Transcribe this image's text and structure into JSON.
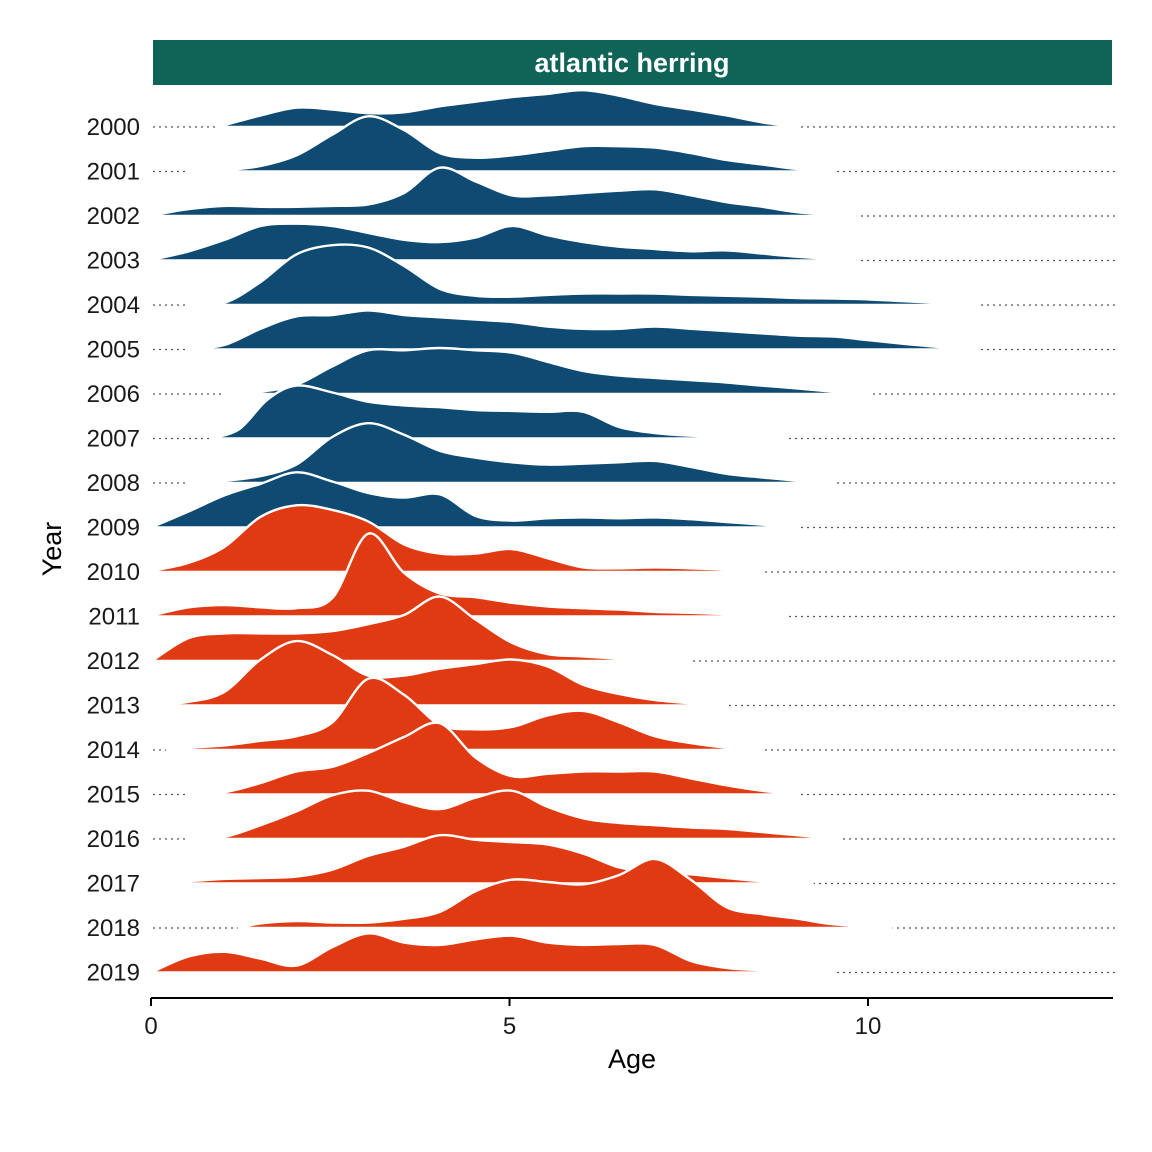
{
  "colors": {
    "strip_fill": "#0f6457",
    "strip_text": "#ffffff",
    "group_a": "#0e4a72",
    "group_b": "#e03a12",
    "outline": "#ffffff"
  },
  "chart_data": {
    "type": "ridgeline",
    "facet_title": "atlantic herring",
    "xlabel": "Age",
    "ylabel": "Year",
    "xlim": [
      0,
      13.5
    ],
    "x_ticks": [
      0,
      5,
      10
    ],
    "grid": false,
    "legend": "none",
    "series": [
      {
        "name": "2000",
        "group": "a",
        "range": [
          0.9,
          9.0
        ],
        "x": [
          0.9,
          1.5,
          2,
          2.5,
          3,
          3.5,
          4,
          4.5,
          5,
          5.5,
          6,
          6.5,
          7,
          7.5,
          8,
          8.5,
          9
        ],
        "y": [
          0,
          0.25,
          0.42,
          0.38,
          0.3,
          0.32,
          0.45,
          0.55,
          0.65,
          0.72,
          0.8,
          0.68,
          0.5,
          0.38,
          0.25,
          0.1,
          0
        ]
      },
      {
        "name": "2001",
        "group": "a",
        "range": [
          0.5,
          9.5
        ],
        "x": [
          0.5,
          1,
          1.5,
          2,
          2.5,
          3,
          3.5,
          4,
          4.5,
          5,
          5.5,
          6,
          6.5,
          7,
          7.5,
          8,
          8.5,
          9,
          9.5
        ],
        "y": [
          0,
          0.03,
          0.12,
          0.35,
          0.8,
          1.2,
          0.9,
          0.4,
          0.3,
          0.35,
          0.45,
          0.55,
          0.55,
          0.52,
          0.4,
          0.25,
          0.15,
          0.05,
          0
        ]
      },
      {
        "name": "2002",
        "group": "a",
        "range": [
          0,
          9.8
        ],
        "x": [
          0,
          0.5,
          1,
          1.5,
          2,
          2.5,
          3,
          3.5,
          4,
          4.5,
          5,
          5.5,
          6,
          6.5,
          7,
          7.5,
          8,
          8.5,
          9,
          9.8
        ],
        "y": [
          0.02,
          0.15,
          0.22,
          0.2,
          0.2,
          0.22,
          0.25,
          0.5,
          1.05,
          0.75,
          0.45,
          0.45,
          0.5,
          0.55,
          0.58,
          0.45,
          0.3,
          0.2,
          0.08,
          0
        ]
      },
      {
        "name": "2003",
        "group": "a",
        "range": [
          0,
          9.8
        ],
        "x": [
          0,
          0.5,
          1,
          1.5,
          2,
          2.5,
          3,
          3.5,
          4,
          4.5,
          5,
          5.5,
          6,
          6.5,
          7,
          7.5,
          8,
          8.5,
          9,
          9.8
        ],
        "y": [
          0.02,
          0.2,
          0.45,
          0.75,
          0.8,
          0.75,
          0.6,
          0.45,
          0.4,
          0.5,
          0.75,
          0.55,
          0.4,
          0.3,
          0.25,
          0.2,
          0.22,
          0.15,
          0.08,
          0
        ]
      },
      {
        "name": "2004",
        "group": "a",
        "range": [
          0.5,
          11.5
        ],
        "x": [
          0.5,
          1,
          1.5,
          2,
          2.5,
          3,
          3.5,
          4,
          4.5,
          5,
          5.5,
          6,
          6.5,
          7,
          7.5,
          8,
          8.5,
          9,
          9.5,
          10,
          10.5,
          11,
          11.5
        ],
        "y": [
          0,
          0.05,
          0.5,
          1.1,
          1.3,
          1.25,
          0.85,
          0.35,
          0.2,
          0.18,
          0.22,
          0.25,
          0.25,
          0.25,
          0.22,
          0.2,
          0.18,
          0.15,
          0.14,
          0.12,
          0.08,
          0.04,
          0
        ]
      },
      {
        "name": "2005",
        "group": "a",
        "range": [
          0.5,
          11.5
        ],
        "x": [
          0.5,
          1,
          1.5,
          2,
          2.5,
          3,
          3.5,
          4,
          4.5,
          5,
          5.5,
          6,
          6.5,
          7,
          7.5,
          8,
          8.5,
          9,
          9.5,
          10,
          10.5,
          11,
          11.5
        ],
        "y": [
          0,
          0.1,
          0.45,
          0.72,
          0.75,
          0.85,
          0.75,
          0.7,
          0.65,
          0.6,
          0.5,
          0.45,
          0.45,
          0.5,
          0.45,
          0.4,
          0.35,
          0.3,
          0.28,
          0.2,
          0.12,
          0.05,
          0
        ]
      },
      {
        "name": "2006",
        "group": "a",
        "range": [
          1,
          10
        ],
        "x": [
          1,
          1.5,
          2,
          2.5,
          3,
          3.5,
          4,
          4.5,
          5,
          5.5,
          6,
          6.5,
          7,
          7.5,
          8,
          8.5,
          9,
          9.5,
          10
        ],
        "y": [
          0,
          0.05,
          0.2,
          0.6,
          0.95,
          0.95,
          1.0,
          0.95,
          0.9,
          0.7,
          0.5,
          0.4,
          0.35,
          0.3,
          0.25,
          0.18,
          0.12,
          0.05,
          0
        ]
      },
      {
        "name": "2007",
        "group": "a",
        "range": [
          0.8,
          8.8
        ],
        "x": [
          0.8,
          1.2,
          1.6,
          2,
          2.5,
          3,
          3.5,
          4,
          4.5,
          5,
          5.5,
          6,
          6.5,
          7,
          7.5,
          8,
          8.8
        ],
        "y": [
          0,
          0.2,
          0.85,
          1.15,
          1.0,
          0.8,
          0.72,
          0.68,
          0.62,
          0.6,
          0.58,
          0.58,
          0.25,
          0.12,
          0.06,
          0.03,
          0
        ]
      },
      {
        "name": "2008",
        "group": "a",
        "range": [
          0.5,
          9.5
        ],
        "x": [
          0.5,
          1,
          1.5,
          2,
          2.5,
          3,
          3.5,
          4,
          4.5,
          5,
          5.5,
          6,
          6.5,
          7,
          7.5,
          8,
          8.5,
          9,
          9.5
        ],
        "y": [
          0,
          0.05,
          0.15,
          0.4,
          1.0,
          1.3,
          1.05,
          0.7,
          0.55,
          0.45,
          0.4,
          0.42,
          0.45,
          0.48,
          0.35,
          0.2,
          0.12,
          0.05,
          0
        ]
      },
      {
        "name": "2009",
        "group": "a",
        "range": [
          0,
          9
        ],
        "x": [
          0,
          0.5,
          1,
          1.5,
          2,
          2.5,
          3,
          3.5,
          4,
          4.5,
          5,
          5.5,
          6,
          6.5,
          7,
          7.5,
          8,
          8.5,
          9
        ],
        "y": [
          0.02,
          0.35,
          0.7,
          0.95,
          1.2,
          1.0,
          0.75,
          0.65,
          0.72,
          0.25,
          0.15,
          0.2,
          0.22,
          0.2,
          0.22,
          0.18,
          0.12,
          0.06,
          0
        ]
      },
      {
        "name": "2010",
        "group": "b",
        "range": [
          0,
          8.5
        ],
        "x": [
          0,
          0.5,
          1,
          1.5,
          2,
          2.5,
          3,
          3.5,
          4,
          4.5,
          5,
          5.5,
          6,
          6.5,
          7,
          7.5,
          8,
          8.5
        ],
        "y": [
          0.03,
          0.2,
          0.55,
          1.2,
          1.45,
          1.35,
          1.1,
          0.6,
          0.4,
          0.4,
          0.5,
          0.3,
          0.1,
          0.08,
          0.1,
          0.08,
          0.05,
          0
        ]
      },
      {
        "name": "2011",
        "group": "b",
        "range": [
          0,
          8.8
        ],
        "x": [
          0,
          0.5,
          1,
          1.5,
          2,
          2.5,
          3,
          3.5,
          4,
          4.5,
          5,
          5.5,
          6,
          6.5,
          7,
          7.5,
          8,
          8.8
        ],
        "y": [
          0.03,
          0.2,
          0.25,
          0.2,
          0.18,
          0.4,
          1.8,
          0.95,
          0.5,
          0.42,
          0.3,
          0.22,
          0.18,
          0.15,
          0.1,
          0.08,
          0.05,
          0
        ]
      },
      {
        "name": "2012",
        "group": "b",
        "range": [
          0,
          7.5
        ],
        "x": [
          0,
          0.5,
          1,
          1.5,
          2,
          2.5,
          3,
          3.5,
          4,
          4.5,
          5,
          5.5,
          6,
          6.5,
          7,
          7.5
        ],
        "y": [
          0.02,
          0.5,
          0.6,
          0.6,
          0.6,
          0.65,
          0.8,
          1.0,
          1.4,
          0.9,
          0.4,
          0.15,
          0.1,
          0.05,
          0.02,
          0
        ]
      },
      {
        "name": "2013",
        "group": "b",
        "range": [
          0,
          8
        ],
        "x": [
          0,
          0.5,
          1,
          1.5,
          2,
          2.5,
          3,
          3.5,
          4,
          4.5,
          5,
          5.5,
          6,
          6.5,
          7,
          7.5,
          8
        ],
        "y": [
          0.02,
          0.08,
          0.3,
          1.0,
          1.4,
          1.1,
          0.65,
          0.65,
          0.8,
          0.9,
          1.0,
          0.85,
          0.45,
          0.25,
          0.12,
          0.05,
          0
        ]
      },
      {
        "name": "2014",
        "group": "b",
        "range": [
          0.2,
          8.5
        ],
        "x": [
          0.2,
          0.5,
          1,
          1.5,
          2,
          2.5,
          3,
          3.5,
          4,
          4.5,
          5,
          5.5,
          6,
          6.5,
          7,
          7.5,
          8,
          8.5
        ],
        "y": [
          0,
          0.05,
          0.1,
          0.2,
          0.3,
          0.6,
          1.55,
          1.2,
          0.55,
          0.45,
          0.5,
          0.75,
          0.85,
          0.6,
          0.3,
          0.15,
          0.05,
          0
        ]
      },
      {
        "name": "2015",
        "group": "b",
        "range": [
          0.5,
          9
        ],
        "x": [
          0.5,
          1,
          1.5,
          2,
          2.5,
          3,
          3.5,
          4,
          4.5,
          5,
          5.5,
          6,
          6.5,
          7,
          7.5,
          8,
          8.5,
          9
        ],
        "y": [
          0,
          0.05,
          0.25,
          0.5,
          0.6,
          0.9,
          1.25,
          1.55,
          0.8,
          0.4,
          0.45,
          0.5,
          0.5,
          0.5,
          0.35,
          0.2,
          0.08,
          0
        ]
      },
      {
        "name": "2016",
        "group": "b",
        "range": [
          0.5,
          9.6
        ],
        "x": [
          0.5,
          1,
          1.5,
          2,
          2.5,
          3,
          3.5,
          4,
          4.5,
          5,
          5.5,
          6,
          6.5,
          7,
          7.5,
          8,
          8.5,
          9,
          9.6
        ],
        "y": [
          0,
          0.05,
          0.3,
          0.6,
          0.95,
          1.05,
          0.8,
          0.65,
          0.9,
          1.05,
          0.7,
          0.45,
          0.35,
          0.3,
          0.25,
          0.22,
          0.15,
          0.08,
          0
        ]
      },
      {
        "name": "2017",
        "group": "b",
        "range": [
          0,
          9.2
        ],
        "x": [
          0,
          0.5,
          1,
          1.5,
          2,
          2.5,
          3,
          3.5,
          4,
          4.5,
          5,
          5.5,
          6,
          6.5,
          7,
          7.5,
          8,
          8.5,
          9.2
        ],
        "y": [
          0.02,
          0.05,
          0.1,
          0.12,
          0.15,
          0.3,
          0.6,
          0.8,
          1.05,
          0.95,
          0.9,
          0.85,
          0.65,
          0.35,
          0.25,
          0.2,
          0.12,
          0.05,
          0
        ]
      },
      {
        "name": "2018",
        "group": "b",
        "range": [
          1.2,
          10.3
        ],
        "x": [
          1.2,
          1.5,
          2,
          2.5,
          3,
          3.5,
          4,
          4.5,
          5,
          5.5,
          6,
          6.5,
          7,
          7.5,
          8,
          8.5,
          9,
          9.5,
          10.3
        ],
        "y": [
          0,
          0.1,
          0.15,
          0.12,
          0.12,
          0.2,
          0.35,
          0.8,
          1.05,
          1.0,
          0.95,
          1.15,
          1.5,
          1.05,
          0.45,
          0.3,
          0.2,
          0.08,
          0
        ]
      },
      {
        "name": "2019",
        "group": "b",
        "range": [
          0,
          9.5
        ],
        "x": [
          0,
          0.5,
          1,
          1.5,
          2,
          2.5,
          3,
          3.5,
          4,
          4.5,
          5,
          5.5,
          6,
          6.5,
          7,
          7.5,
          8,
          8.5,
          9.5
        ],
        "y": [
          0.02,
          0.35,
          0.45,
          0.3,
          0.15,
          0.55,
          0.85,
          0.65,
          0.6,
          0.72,
          0.8,
          0.65,
          0.6,
          0.62,
          0.6,
          0.25,
          0.1,
          0.05,
          0
        ]
      }
    ]
  }
}
